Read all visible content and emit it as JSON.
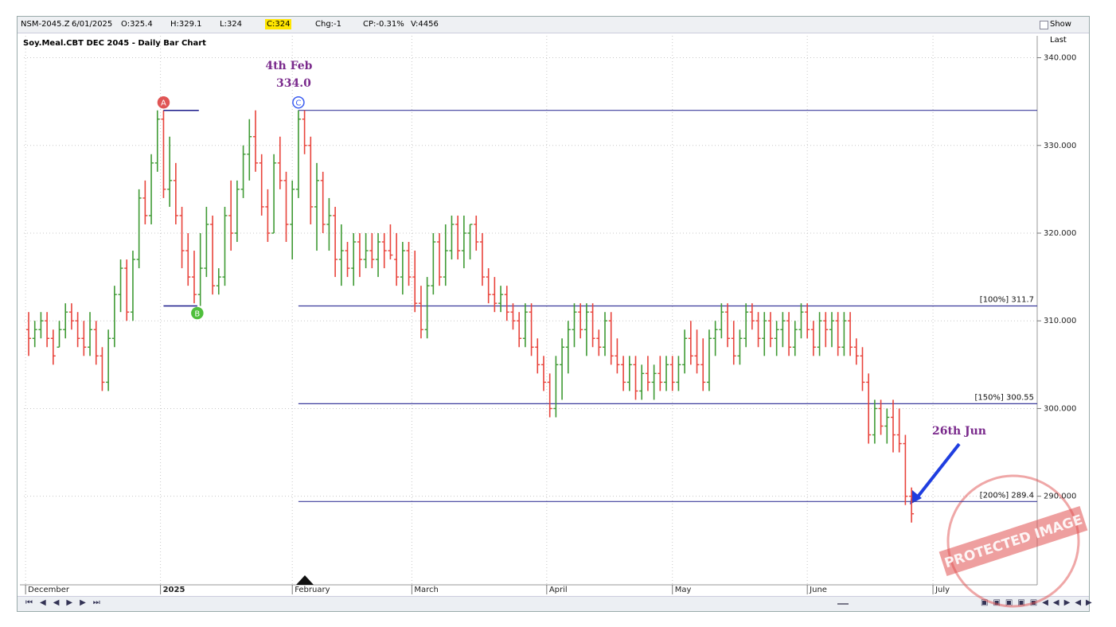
{
  "header": {
    "symbol": "NSM-2045.Z",
    "date": "6/01/2025",
    "open": "O:325.4",
    "high": "H:329.1",
    "low": "L:324",
    "close": "C:324",
    "change": "Chg:-1",
    "change_pct": "CP:-0.31%",
    "volume": "V:4456",
    "show_last": "Show Last"
  },
  "watermark": "PROTECTED IMAGE",
  "chart_data": {
    "type": "ohlc",
    "title": "Soy.Meal.CBT DEC 2045 - Daily Bar Chart",
    "up_color": "#3f9a34",
    "down_color": "#e8433b",
    "level_color": "#3b3b9c",
    "grid": true,
    "xlim": [
      -0.78,
      164.5
    ],
    "ylim": [
      279.9,
      342.5
    ],
    "xticks": [
      {
        "value": -0.5,
        "label": "December"
      },
      {
        "value": 21.5,
        "label": "2025"
      },
      {
        "value": 43,
        "label": "February"
      },
      {
        "value": 62.5,
        "label": "March"
      },
      {
        "value": 84.5,
        "label": "April"
      },
      {
        "value": 105,
        "label": "May"
      },
      {
        "value": 127,
        "label": "June"
      },
      {
        "value": 147.5,
        "label": "July"
      }
    ],
    "yticks": [
      {
        "value": 290,
        "label": "290.000"
      },
      {
        "value": 300,
        "label": "300.000"
      },
      {
        "value": 310,
        "label": "310.000"
      },
      {
        "value": 320,
        "label": "320.000"
      },
      {
        "value": 330,
        "label": "330.000"
      },
      {
        "value": 340,
        "label": "340.000"
      }
    ],
    "ohlc": [
      [
        309,
        311,
        306,
        308
      ],
      [
        308,
        310,
        307,
        309
      ],
      [
        309,
        311,
        308,
        310
      ],
      [
        310,
        311,
        307,
        308
      ],
      [
        308,
        309,
        305,
        306
      ],
      [
        307,
        310,
        307,
        309
      ],
      [
        309,
        312,
        308,
        311
      ],
      [
        311,
        312,
        309,
        310
      ],
      [
        310,
        311,
        307,
        308
      ],
      [
        308,
        310,
        306,
        307
      ],
      [
        307,
        311,
        306,
        309
      ],
      [
        309,
        310,
        305,
        306
      ],
      [
        306,
        307,
        302,
        303
      ],
      [
        303,
        309,
        302,
        308
      ],
      [
        308,
        314,
        307,
        313
      ],
      [
        313,
        317,
        311,
        316
      ],
      [
        316,
        317,
        310,
        311
      ],
      [
        311,
        318,
        310,
        317
      ],
      [
        317,
        325,
        316,
        324
      ],
      [
        324,
        326,
        321,
        322
      ],
      [
        322,
        329,
        321,
        328
      ],
      [
        328,
        334,
        327,
        333
      ],
      [
        333,
        334,
        324,
        325
      ],
      [
        325,
        331,
        323,
        326
      ],
      [
        326,
        328,
        321,
        322
      ],
      [
        322,
        323,
        316,
        318
      ],
      [
        318,
        320,
        314,
        315
      ],
      [
        315,
        318,
        312,
        313
      ],
      [
        313,
        320,
        311.7,
        316
      ],
      [
        316,
        323,
        315,
        321
      ],
      [
        321,
        322,
        313,
        314
      ],
      [
        314,
        316,
        313,
        315
      ],
      [
        315,
        323,
        314,
        322
      ],
      [
        322,
        326,
        318,
        320
      ],
      [
        320,
        326,
        319,
        325
      ],
      [
        325,
        330,
        324,
        329
      ],
      [
        329,
        333,
        326,
        331
      ],
      [
        331,
        334,
        327,
        328
      ],
      [
        328,
        329,
        322,
        323
      ],
      [
        323,
        325,
        319,
        320
      ],
      [
        320,
        329,
        320,
        328
      ],
      [
        328,
        331,
        325,
        326
      ],
      [
        326,
        327,
        319,
        321
      ],
      [
        321,
        326,
        317,
        325
      ],
      [
        325,
        334,
        324,
        333
      ],
      [
        333,
        334,
        329,
        330
      ],
      [
        330,
        331,
        321,
        323
      ],
      [
        323,
        328,
        318,
        326
      ],
      [
        326,
        327,
        320,
        321
      ],
      [
        321,
        324,
        318,
        322
      ],
      [
        322,
        323,
        315,
        317
      ],
      [
        317,
        321,
        314,
        318
      ],
      [
        318,
        319,
        315,
        316
      ],
      [
        316,
        320,
        314,
        319
      ],
      [
        319,
        320,
        315,
        317
      ],
      [
        317,
        320,
        316,
        318
      ],
      [
        318,
        320,
        316,
        317
      ],
      [
        317,
        320,
        315,
        319
      ],
      [
        319,
        320,
        316,
        318
      ],
      [
        318,
        321,
        317,
        317.5
      ],
      [
        317,
        320,
        314,
        315
      ],
      [
        315,
        319,
        313,
        318
      ],
      [
        318,
        319,
        314,
        315
      ],
      [
        315,
        318,
        311,
        312
      ],
      [
        312,
        314,
        308,
        309
      ],
      [
        309,
        315,
        308,
        314
      ],
      [
        314,
        320,
        313,
        319
      ],
      [
        319,
        320,
        314,
        315
      ],
      [
        315,
        321,
        314,
        318
      ],
      [
        318,
        322,
        317,
        321
      ],
      [
        321,
        322,
        317,
        318
      ],
      [
        318,
        322,
        316,
        320
      ],
      [
        320,
        321,
        317,
        321
      ],
      [
        321,
        322,
        318,
        319
      ],
      [
        319,
        320,
        314,
        315
      ],
      [
        315,
        316,
        312,
        313
      ],
      [
        313,
        315,
        311,
        312
      ],
      [
        312,
        314,
        311,
        313
      ],
      [
        313,
        314,
        310,
        311
      ],
      [
        311,
        312,
        309,
        310
      ],
      [
        310,
        311,
        307,
        308
      ],
      [
        308,
        312,
        307,
        311
      ],
      [
        311,
        312,
        306,
        307
      ],
      [
        307,
        308,
        304,
        305
      ],
      [
        305,
        306,
        302,
        303
      ],
      [
        303,
        304,
        299,
        300
      ],
      [
        300,
        306,
        299,
        305
      ],
      [
        305,
        308,
        301,
        307
      ],
      [
        307,
        310,
        304,
        309
      ],
      [
        309,
        312,
        307,
        311
      ],
      [
        311,
        312,
        308,
        309
      ],
      [
        309,
        312,
        306,
        311
      ],
      [
        311,
        312,
        307,
        308
      ],
      [
        308,
        309,
        306,
        307
      ],
      [
        307,
        311,
        306,
        310
      ],
      [
        310,
        311,
        305,
        306
      ],
      [
        306,
        308,
        304,
        305
      ],
      [
        305,
        306,
        302,
        303
      ],
      [
        303,
        306,
        302,
        305
      ],
      [
        305,
        306,
        301,
        302
      ],
      [
        302,
        305,
        301,
        304
      ],
      [
        304,
        306,
        302,
        303
      ],
      [
        303,
        305,
        301,
        304
      ],
      [
        304,
        306,
        302,
        303
      ],
      [
        303,
        306,
        302,
        305
      ],
      [
        305,
        306,
        302,
        303
      ],
      [
        303,
        306,
        302,
        305
      ],
      [
        305,
        309,
        304,
        308
      ],
      [
        308,
        310,
        305,
        306
      ],
      [
        306,
        309,
        304,
        305
      ],
      [
        305,
        308,
        302,
        303
      ],
      [
        303,
        309,
        302,
        308
      ],
      [
        308,
        310,
        306,
        309
      ],
      [
        309,
        312,
        308,
        311
      ],
      [
        311,
        312,
        307,
        308
      ],
      [
        308,
        310,
        305,
        306
      ],
      [
        306,
        309,
        305,
        308
      ],
      [
        308,
        312,
        307,
        311
      ],
      [
        311,
        312,
        309,
        310
      ],
      [
        310,
        311,
        307,
        308
      ],
      [
        308,
        311,
        306,
        310
      ],
      [
        310,
        311,
        307,
        308
      ],
      [
        308,
        310,
        306,
        309
      ],
      [
        309,
        311,
        307,
        310
      ],
      [
        310,
        311,
        306,
        307
      ],
      [
        307,
        310,
        306,
        309
      ],
      [
        309,
        312,
        308,
        311
      ],
      [
        311,
        312,
        308,
        309
      ],
      [
        309,
        310,
        306,
        307
      ],
      [
        307,
        311,
        306,
        310
      ],
      [
        310,
        311,
        307,
        309
      ],
      [
        309,
        311,
        307,
        310
      ],
      [
        310,
        311,
        306,
        307
      ],
      [
        307,
        311,
        306,
        310
      ],
      [
        310,
        311,
        306,
        307
      ],
      [
        307,
        308,
        305,
        306
      ],
      [
        306,
        307,
        302,
        303
      ],
      [
        303,
        304,
        296,
        297
      ],
      [
        297,
        301,
        296,
        300
      ],
      [
        300,
        301,
        297,
        298
      ],
      [
        298,
        300,
        296,
        299
      ],
      [
        299,
        301,
        295,
        297
      ],
      [
        297,
        300,
        295,
        296
      ],
      [
        296,
        297,
        289,
        290
      ],
      [
        290,
        291,
        287,
        288
      ]
    ],
    "points": [
      {
        "label": "A",
        "x": 22,
        "value": 334
      },
      {
        "label": "B",
        "x": 27.5,
        "value": 311.7
      },
      {
        "label": "C",
        "x": 44,
        "value": 334
      }
    ],
    "levels": [
      {
        "value": 334,
        "start": 44
      },
      {
        "value": 311.7,
        "label": "[100%] 311.7",
        "start": 44
      },
      {
        "value": 300.55,
        "label": "[150%] 300.55",
        "start": 44
      },
      {
        "value": 289.4,
        "label": "[200%] 289.4",
        "start": 44
      }
    ],
    "callouts": [
      "4th Feb",
      "334.0",
      "26th Jun"
    ]
  }
}
